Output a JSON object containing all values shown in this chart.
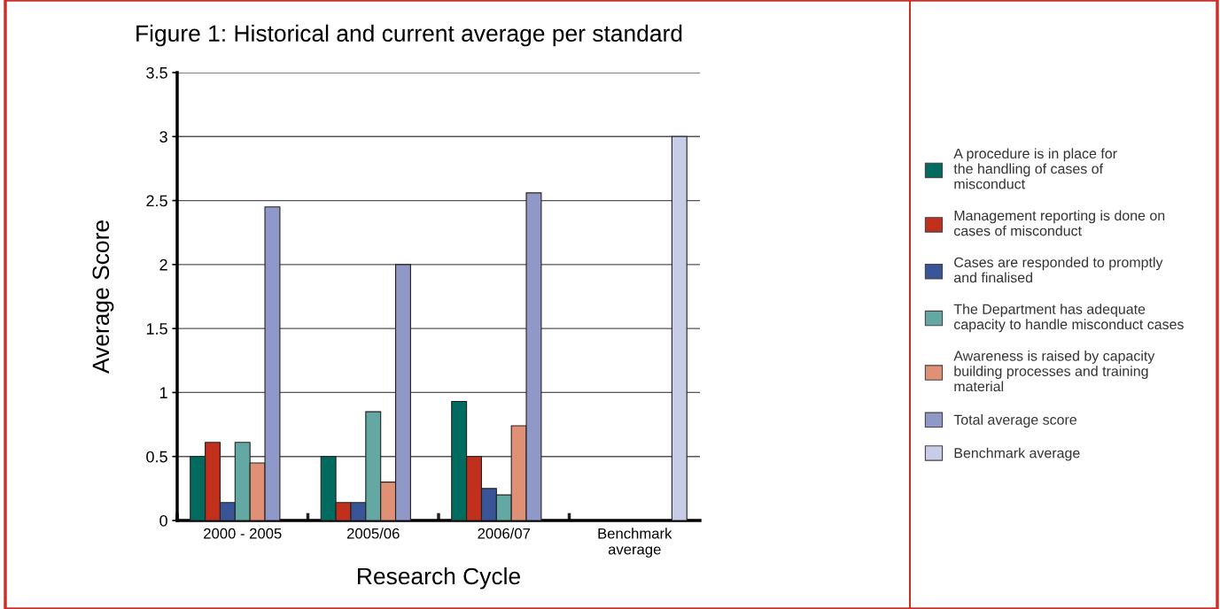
{
  "chart_data": {
    "type": "bar",
    "title": "Figure 1: Historical and current average per standard",
    "xlabel": "Research Cycle",
    "ylabel": "Average Score",
    "categories": [
      "2000 - 2005",
      "2005/06",
      "2006/07",
      "Benchmark\naverage"
    ],
    "series": [
      {
        "name": "A procedure is in place for\nthe handling of cases of\nmisconduct",
        "color": "#006b5e",
        "values": [
          0.5,
          0.5,
          0.93,
          null
        ]
      },
      {
        "name": "Management reporting is done on\ncases of misconduct",
        "color": "#c0301c",
        "values": [
          0.61,
          0.14,
          0.5,
          null
        ]
      },
      {
        "name": "Cases are responded to promptly\nand finalised",
        "color": "#3a5597",
        "values": [
          0.14,
          0.14,
          0.25,
          null
        ]
      },
      {
        "name": "The Department has adequate\ncapacity to handle misconduct cases",
        "color": "#63a8a3",
        "values": [
          0.61,
          0.85,
          0.2,
          null
        ]
      },
      {
        "name": "Awareness is raised by capacity\nbuilding processes and training\nmaterial",
        "color": "#e09074",
        "values": [
          0.45,
          0.3,
          0.74,
          null
        ]
      },
      {
        "name": "Total average score",
        "color": "#8f98c6",
        "values": [
          2.45,
          2.0,
          2.56,
          null
        ]
      },
      {
        "name": "Benchmark average",
        "color": "#c9cce6",
        "values": [
          null,
          null,
          null,
          3.0
        ]
      }
    ],
    "ylim": [
      0,
      3.5
    ],
    "yticks": [
      0,
      0.5,
      1,
      1.5,
      2,
      2.5,
      3,
      3.5
    ],
    "grid": "y",
    "legend": "right"
  }
}
